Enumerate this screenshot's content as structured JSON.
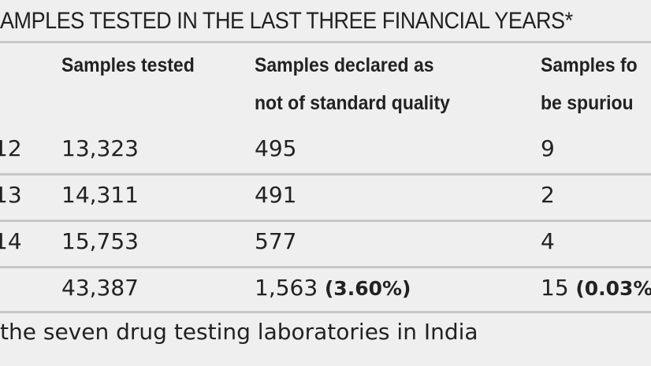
{
  "table": {
    "title": "AMPLES TESTED IN THE LAST THREE FINANCIAL YEARS*",
    "columns": [
      [
        "Samples tested"
      ],
      [
        "Samples declared as",
        "not of standard quality"
      ],
      [
        "Samples fo",
        "be spuriou"
      ]
    ],
    "rows": [
      [
        "12",
        "13,323",
        "495",
        "9"
      ],
      [
        "13",
        "14,311",
        "491",
        "2"
      ],
      [
        "14",
        "15,753",
        "577",
        "4"
      ]
    ],
    "total": [
      {
        "value": "43,387"
      },
      {
        "value": "1,563",
        "share": "(3.60%)"
      },
      {
        "value": "15",
        "share": "(0.03%"
      }
    ],
    "footnote": "the seven drug testing laboratories in India"
  }
}
